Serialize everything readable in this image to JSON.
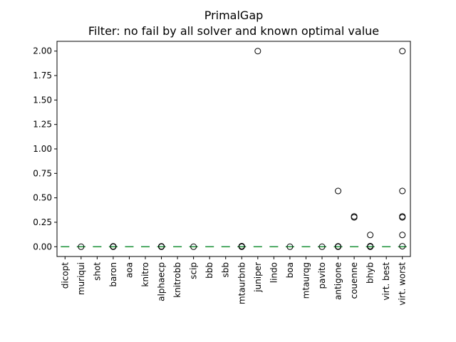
{
  "chart_data": {
    "type": "boxplot",
    "title": "PrimalGap",
    "subtitle": "Filter: no fail by all solver and known optimal value",
    "xlabel": "",
    "ylabel": "",
    "ylim": [
      -0.1,
      2.1
    ],
    "y_ticks": [
      "0.00",
      "0.25",
      "0.50",
      "0.75",
      "1.00",
      "1.25",
      "1.50",
      "1.75",
      "2.00"
    ],
    "y_tick_values": [
      0,
      0.25,
      0.5,
      0.75,
      1.0,
      1.25,
      1.5,
      1.75,
      2.0
    ],
    "grid": false,
    "median_color": "#2ca02c",
    "box_color": "#1f77b4",
    "categories": [
      "dicopt",
      "muriqui",
      "shot",
      "baron",
      "aoa",
      "knitro",
      "alphaecp",
      "knitrobb",
      "scip",
      "bbb",
      "sbb",
      "mtaurbnb",
      "juniper",
      "lindo",
      "boa",
      "mtaurqg",
      "pavito",
      "antigone",
      "couenne",
      "bhyb",
      "virt. best",
      "virt. worst"
    ],
    "series": [
      {
        "median": 0,
        "outliers": []
      },
      {
        "median": 0,
        "outliers": [
          0.0
        ]
      },
      {
        "median": 0,
        "outliers": []
      },
      {
        "median": 0,
        "outliers": [
          0.0,
          0.002,
          0.004
        ]
      },
      {
        "median": 0,
        "outliers": []
      },
      {
        "median": 0,
        "outliers": []
      },
      {
        "median": 0,
        "outliers": [
          0.0,
          0.002,
          0.004
        ]
      },
      {
        "median": 0,
        "outliers": []
      },
      {
        "median": 0,
        "outliers": [
          0.0
        ]
      },
      {
        "median": 0,
        "outliers": []
      },
      {
        "median": 0,
        "outliers": []
      },
      {
        "median": 0,
        "outliers": [
          0.0,
          0.002,
          0.004,
          0.006
        ]
      },
      {
        "median": 0,
        "outliers": [
          2.0
        ]
      },
      {
        "median": 0,
        "outliers": []
      },
      {
        "median": 0,
        "outliers": [
          0.0
        ]
      },
      {
        "median": 0,
        "outliers": []
      },
      {
        "median": 0,
        "outliers": [
          0.0
        ]
      },
      {
        "median": 0,
        "outliers": [
          0.57,
          0.0,
          0.002,
          0.004
        ]
      },
      {
        "median": 0,
        "outliers": [
          0.3,
          0.31
        ]
      },
      {
        "median": 0,
        "outliers": [
          0.12,
          0.0,
          0.003,
          0.006
        ]
      },
      {
        "median": 0,
        "outliers": []
      },
      {
        "median": 0,
        "outliers": [
          2.0,
          0.57,
          0.3,
          0.31,
          0.12,
          0.005
        ]
      }
    ]
  }
}
